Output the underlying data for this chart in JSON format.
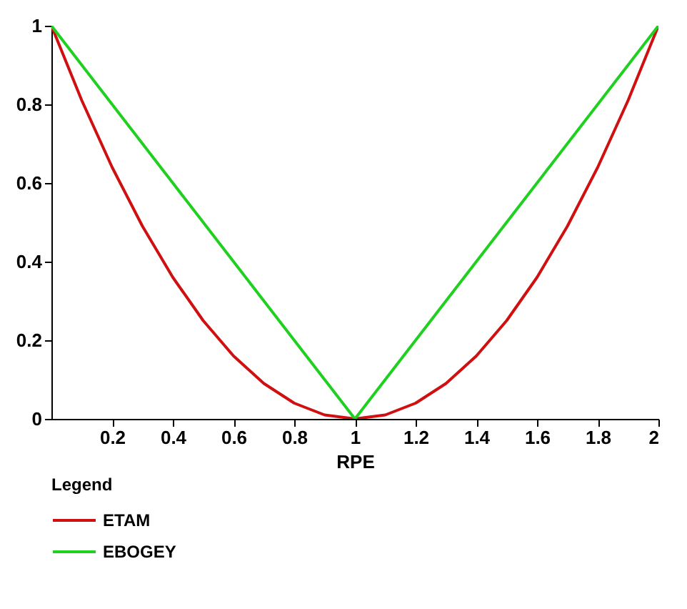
{
  "chart_data": {
    "type": "line",
    "xlabel": "RPE",
    "legend_title": "Legend",
    "legend": "bottom",
    "grid": false,
    "marker": "none",
    "line_style": "solid",
    "xlim": [
      0,
      2
    ],
    "ylim": [
      0,
      1
    ],
    "xticks": [
      0.2,
      0.4,
      0.6,
      0.8,
      1,
      1.2,
      1.4,
      1.6,
      1.8,
      2
    ],
    "yticks": [
      0,
      0.2,
      0.4,
      0.6,
      0.8,
      1
    ],
    "series": [
      {
        "name": "ETAM",
        "color": "#d01010",
        "x": [
          0,
          0.1,
          0.2,
          0.3,
          0.4,
          0.5,
          0.6,
          0.7,
          0.8,
          0.9,
          1,
          1.1,
          1.2,
          1.3,
          1.4,
          1.5,
          1.6,
          1.7,
          1.8,
          1.9,
          2
        ],
        "values": [
          1,
          0.81,
          0.64,
          0.49,
          0.36,
          0.25,
          0.16,
          0.09,
          0.04,
          0.01,
          0,
          0.01,
          0.04,
          0.09,
          0.16,
          0.25,
          0.36,
          0.49,
          0.64,
          0.81,
          1
        ]
      },
      {
        "name": "EBOGEY",
        "color": "#20d020",
        "x": [
          0,
          1,
          2
        ],
        "values": [
          1,
          0,
          1
        ]
      }
    ]
  }
}
